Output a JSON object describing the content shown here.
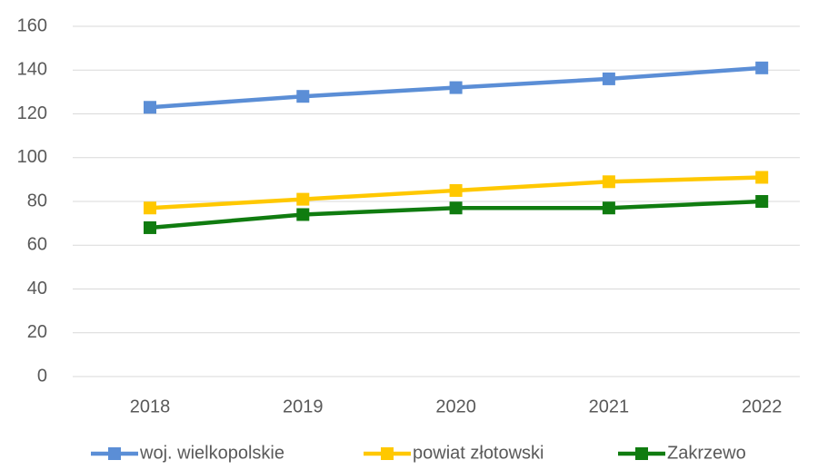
{
  "chart_data": {
    "type": "line",
    "categories": [
      "2018",
      "2019",
      "2020",
      "2021",
      "2022"
    ],
    "series": [
      {
        "name": "woj. wielkopolskie",
        "color": "#5b8ed6",
        "values": [
          123,
          128,
          132,
          136,
          141
        ]
      },
      {
        "name": "powiat złotowski",
        "color": "#ffc800",
        "values": [
          77,
          81,
          85,
          89,
          91
        ]
      },
      {
        "name": "Zakrzewo",
        "color": "#107c10",
        "values": [
          68,
          74,
          77,
          77,
          80
        ]
      }
    ],
    "ylim": [
      0,
      160
    ],
    "yticks": [
      0,
      20,
      40,
      60,
      80,
      100,
      120,
      140,
      160
    ],
    "grid": true,
    "legend": "bottom"
  }
}
